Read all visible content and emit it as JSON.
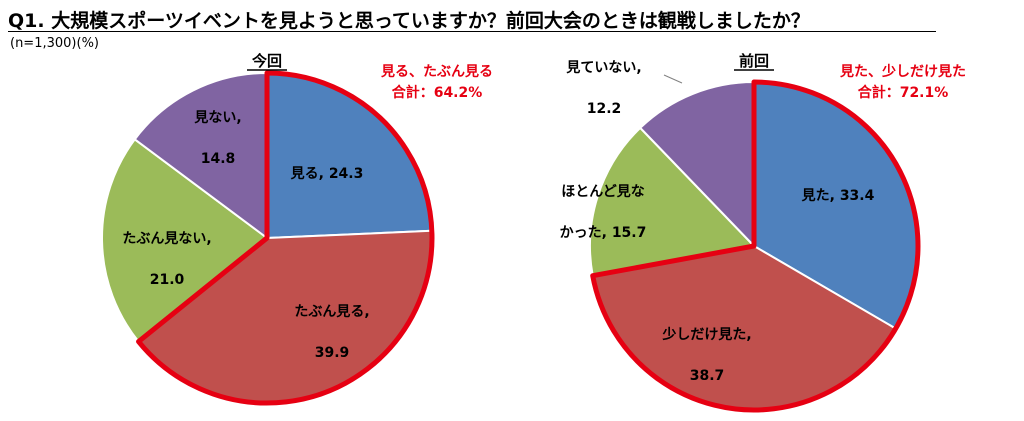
{
  "title": "Q1. 大規模スポーツイベントを見ようと思っていますか？前回大会のときは観戦しましたか？",
  "note": "(n=1,300)(%)",
  "chart_data": [
    {
      "type": "pie",
      "title": "今回",
      "slices": [
        {
          "name": "見る",
          "value": 24.3,
          "color": "#4f81bd",
          "label": [
            "見る, 24.3"
          ],
          "highlight": true
        },
        {
          "name": "たぶん見る",
          "value": 39.9,
          "color": "#c0504d",
          "label": [
            "たぶん見る,",
            "39.9"
          ],
          "highlight": true
        },
        {
          "name": "たぶん見ない",
          "value": 21.0,
          "color": "#9bbb59",
          "label": [
            "たぶん見ない,",
            "21.0"
          ],
          "highlight": false
        },
        {
          "name": "見ない",
          "value": 14.8,
          "color": "#8064a2",
          "label": [
            "見ない,",
            "14.8"
          ],
          "highlight": false
        }
      ],
      "callout": [
        "見る、たぶん見る",
        "合計：64.2%"
      ]
    },
    {
      "type": "pie",
      "title": "前回",
      "slices": [
        {
          "name": "見た",
          "value": 33.4,
          "color": "#4f81bd",
          "label": [
            "見た, 33.4"
          ],
          "highlight": true
        },
        {
          "name": "少しだけ見た",
          "value": 38.7,
          "color": "#c0504d",
          "label": [
            "少しだけ見た,",
            "38.7"
          ],
          "highlight": true
        },
        {
          "name": "ほとんど見なかった",
          "value": 15.7,
          "color": "#9bbb59",
          "label": [
            "ほとんど見な",
            "かった, 15.7"
          ],
          "highlight": false
        },
        {
          "name": "見ていない",
          "value": 12.2,
          "color": "#8064a2",
          "label": [
            "見ていない,",
            "12.2"
          ],
          "highlight": false
        }
      ],
      "callout": [
        "見た、少しだけ見た",
        "合計：72.1%"
      ]
    }
  ]
}
